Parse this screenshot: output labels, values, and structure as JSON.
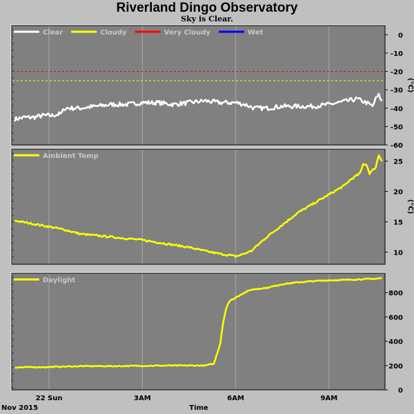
{
  "page": {
    "title": "Riverland Dingo Observatory",
    "subtitle": "Sky is Clear."
  },
  "colors": {
    "panel_bg": "#808080",
    "grid": "#a8a8a8",
    "clear": "#ffffff",
    "cloudy": "#ffff00",
    "very_cloudy": "#ff0000",
    "wet": "#0000ff"
  },
  "x_axis": {
    "range_hours": [
      -1.2,
      10.8
    ],
    "ticks": [
      {
        "hour": 0,
        "label": "22 Sun"
      },
      {
        "hour": 3,
        "label": "3AM"
      },
      {
        "hour": 6,
        "label": "6AM"
      },
      {
        "hour": 9,
        "label": "9AM"
      }
    ],
    "start_label": "Nov 2015",
    "title": "Time"
  },
  "chart_data": [
    {
      "type": "line",
      "name": "sky",
      "ylabel": "(°C)",
      "ylim": [
        -60,
        5
      ],
      "yticks": [
        0,
        -10,
        -20,
        -30,
        -40,
        -50,
        -60
      ],
      "legend": [
        {
          "label": "Clear",
          "color": "#ffffff"
        },
        {
          "label": "Cloudy",
          "color": "#ffff00"
        },
        {
          "label": "Very Cloudy",
          "color": "#ff0000"
        },
        {
          "label": "Wet",
          "color": "#0000ff"
        }
      ],
      "thresholds": [
        {
          "value": -20,
          "color": "#ff0000"
        },
        {
          "value": -25,
          "color": "#ffff00"
        }
      ],
      "series": [
        {
          "name": "Clear",
          "color": "#ffffff",
          "x": [
            -1.1,
            -0.8,
            -0.5,
            -0.2,
            0.1,
            0.4,
            0.5,
            1.0,
            1.5,
            2.0,
            2.5,
            3.0,
            3.5,
            4.0,
            4.5,
            5.0,
            5.5,
            6.0,
            6.3,
            6.6,
            7.0,
            7.5,
            8.0,
            8.5,
            9.0,
            9.3,
            9.6,
            9.9,
            10.2,
            10.4,
            10.5,
            10.6,
            10.7
          ],
          "y": [
            -46,
            -45,
            -45,
            -44,
            -44,
            -43,
            -40,
            -40,
            -39,
            -38,
            -38,
            -37,
            -37,
            -38,
            -37,
            -36,
            -37,
            -37,
            -38,
            -40,
            -40,
            -39,
            -39,
            -39,
            -38,
            -37,
            -36,
            -35,
            -37,
            -39,
            -35,
            -33,
            -36
          ],
          "noise": 1.2
        }
      ]
    },
    {
      "type": "line",
      "name": "ambient",
      "ylabel": "(°C)",
      "ylim": [
        8,
        27
      ],
      "yticks": [
        25,
        20,
        15,
        10
      ],
      "legend": [
        {
          "label": "Ambient Temp",
          "color": "#ffff00"
        }
      ],
      "series": [
        {
          "name": "Ambient Temp",
          "color": "#ffff00",
          "x": [
            -1.1,
            0,
            0.5,
            1,
            2,
            3,
            4,
            4.5,
            5,
            5.5,
            5.8,
            6.0,
            6.2,
            6.5,
            7.0,
            7.5,
            8.0,
            8.5,
            9.0,
            9.5,
            9.7,
            10.0,
            10.1,
            10.2,
            10.3,
            10.5,
            10.6,
            10.7
          ],
          "y": [
            15.2,
            14.2,
            13.7,
            13.0,
            12.5,
            12.0,
            11.2,
            10.8,
            10.2,
            9.7,
            9.5,
            9.3,
            9.6,
            10.2,
            12.5,
            14.5,
            16.5,
            18.0,
            19.5,
            21.0,
            22.0,
            23.0,
            24.5,
            24.5,
            23.0,
            24.0,
            26.0,
            25.0
          ],
          "noise": 0.15
        }
      ]
    },
    {
      "type": "line",
      "name": "daylight",
      "ylabel": "",
      "ylim": [
        0,
        960
      ],
      "yticks": [
        800,
        600,
        400,
        200,
        0
      ],
      "legend": [
        {
          "label": "Daylight",
          "color": "#ffff00"
        }
      ],
      "series": [
        {
          "name": "Daylight",
          "color": "#ffff00",
          "x": [
            -1.1,
            0,
            1,
            2,
            3,
            4,
            5,
            5.3,
            5.5,
            5.6,
            5.7,
            5.8,
            6.0,
            6.2,
            6.5,
            7.0,
            7.5,
            8.0,
            8.5,
            9.0,
            9.5,
            10.0,
            10.5,
            10.7
          ],
          "y": [
            185,
            188,
            195,
            195,
            198,
            200,
            200,
            215,
            380,
            560,
            680,
            730,
            760,
            790,
            825,
            840,
            870,
            885,
            895,
            902,
            905,
            910,
            915,
            920
          ],
          "noise": 4
        }
      ]
    }
  ]
}
